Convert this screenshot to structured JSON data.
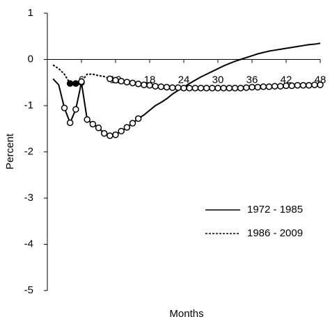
{
  "chart_data": {
    "type": "line",
    "x_label": "Months",
    "y_label": "Percent",
    "x": [
      1,
      2,
      3,
      4,
      5,
      6,
      7,
      8,
      9,
      10,
      11,
      12,
      13,
      14,
      15,
      16,
      17,
      18,
      19,
      20,
      21,
      22,
      23,
      24,
      25,
      26,
      27,
      28,
      29,
      30,
      31,
      32,
      33,
      34,
      35,
      36,
      37,
      38,
      39,
      40,
      41,
      42,
      43,
      44,
      45,
      46,
      47,
      48
    ],
    "series": [
      {
        "name": "1972 - 1985",
        "color": "#000000",
        "dash": "none",
        "values": [
          -0.42,
          -0.55,
          -1.05,
          -1.37,
          -1.08,
          -0.5,
          -1.3,
          -1.4,
          -1.48,
          -1.6,
          -1.65,
          -1.63,
          -1.55,
          -1.47,
          -1.38,
          -1.28,
          -1.2,
          -1.1,
          -1.0,
          -0.93,
          -0.85,
          -0.75,
          -0.67,
          -0.6,
          -0.52,
          -0.45,
          -0.38,
          -0.32,
          -0.26,
          -0.2,
          -0.14,
          -0.09,
          -0.04,
          0.0,
          0.04,
          0.08,
          0.12,
          0.15,
          0.18,
          0.2,
          0.22,
          0.24,
          0.26,
          0.28,
          0.3,
          0.32,
          0.33,
          0.35
        ],
        "markers": [
          null,
          null,
          "open",
          "open",
          "open",
          "open",
          "open",
          "open",
          "open",
          "open",
          "open",
          "open",
          "open",
          "open",
          "open",
          "open",
          null,
          null,
          null,
          null,
          null,
          null,
          null,
          null,
          null,
          null,
          null,
          null,
          null,
          null,
          null,
          null,
          null,
          null,
          null,
          null,
          null,
          null,
          null,
          null,
          null,
          null,
          null,
          null,
          null,
          null,
          null,
          null
        ]
      },
      {
        "name": "1986 - 2009",
        "color": "#000000",
        "dash": "3,2",
        "values": [
          -0.12,
          -0.2,
          -0.32,
          -0.52,
          -0.52,
          -0.48,
          -0.32,
          -0.32,
          -0.35,
          -0.37,
          -0.42,
          -0.45,
          -0.47,
          -0.49,
          -0.51,
          -0.53,
          -0.55,
          -0.56,
          -0.58,
          -0.59,
          -0.6,
          -0.61,
          -0.61,
          -0.62,
          -0.62,
          -0.62,
          -0.62,
          -0.62,
          -0.62,
          -0.62,
          -0.62,
          -0.62,
          -0.62,
          -0.62,
          -0.61,
          -0.6,
          -0.6,
          -0.59,
          -0.59,
          -0.58,
          -0.58,
          -0.57,
          -0.57,
          -0.56,
          -0.56,
          -0.56,
          -0.55,
          -0.55
        ],
        "markers": [
          null,
          null,
          null,
          "filled",
          "filled",
          "open",
          null,
          null,
          null,
          null,
          "open",
          "open",
          "open",
          "open",
          "open",
          "open",
          "open",
          "open",
          "open",
          "open",
          "open",
          "open",
          "open",
          "open",
          "open",
          "open",
          "open",
          "open",
          "open",
          "open",
          "open",
          "open",
          "open",
          "open",
          "open",
          "open",
          "open",
          "open",
          "open",
          "open",
          "open",
          "open",
          "open",
          "open",
          "open",
          "open",
          "open",
          "open"
        ]
      }
    ],
    "xlim": [
      0,
      48
    ],
    "xticks": [
      6,
      12,
      18,
      24,
      30,
      36,
      42,
      48
    ],
    "ylim": [
      -5,
      1
    ],
    "yticks": [
      1,
      0,
      -1,
      -2,
      -3,
      -4,
      -5
    ],
    "legend": "lower right"
  }
}
